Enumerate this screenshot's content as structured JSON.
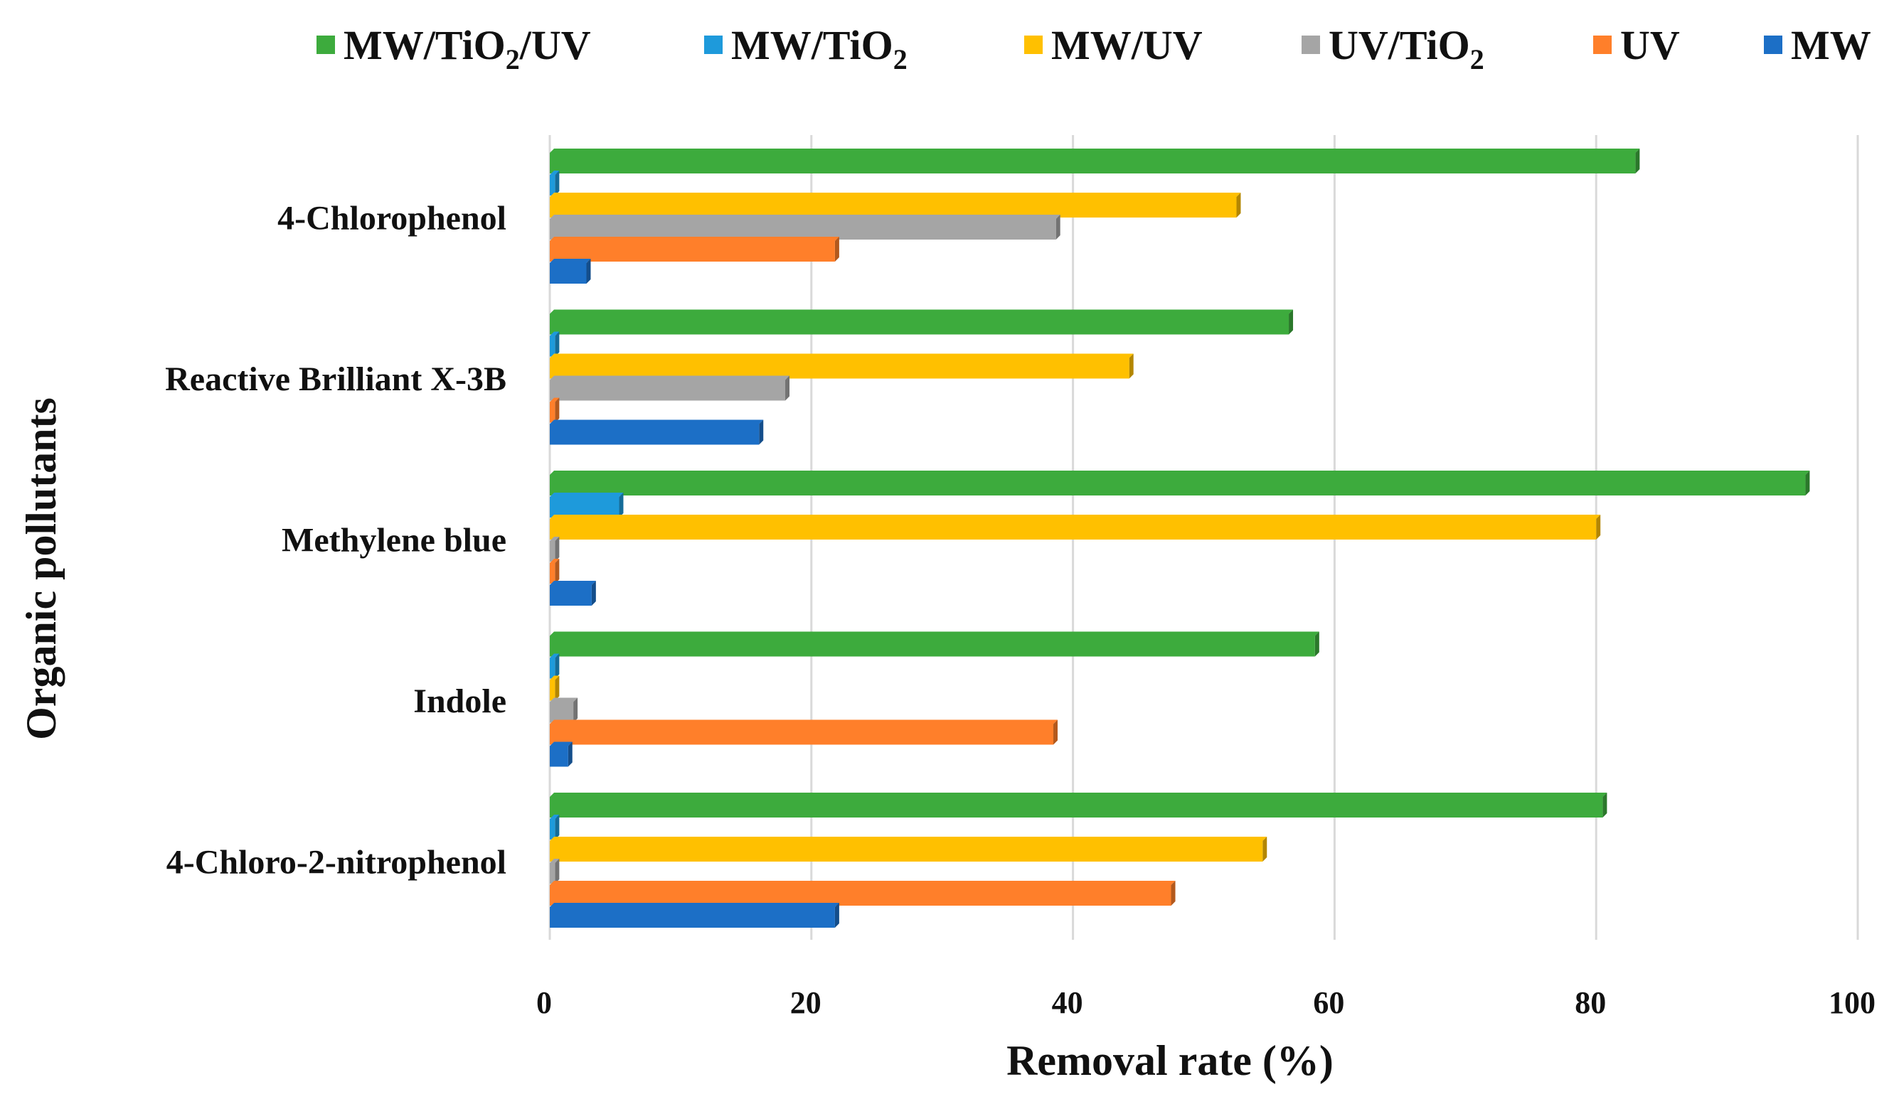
{
  "chart_data": {
    "type": "bar",
    "orientation": "horizontal",
    "title": "",
    "xlabel": "Removal rate (%)",
    "ylabel": "Organic pollutants",
    "xlim": [
      0,
      100
    ],
    "xticks": [
      "0",
      "20",
      "40",
      "60",
      "80",
      "100"
    ],
    "grid": true,
    "legend_position": "top",
    "categories": [
      "4-Chlorophenol",
      "Reactive Brilliant X-3B",
      "Methylene blue",
      "Indole",
      "4-Chloro-2-nitrophenol"
    ],
    "series": [
      {
        "name": "MW/TiO2/UV",
        "legend_main": "MW/TiO",
        "legend_sub": "2",
        "legend_tail": "/UV",
        "color": "#3DAB3D",
        "values": [
          83,
          56.5,
          96,
          58.5,
          80.5
        ]
      },
      {
        "name": "MW/TiO2",
        "legend_main": "MW/TiO",
        "legend_sub": "2",
        "legend_tail": "",
        "color": "#1E9ADB",
        "values": [
          0.4,
          0.4,
          5.3,
          0.4,
          0.4
        ]
      },
      {
        "name": "MW/UV",
        "legend_main": "MW/UV",
        "legend_sub": "",
        "legend_tail": "",
        "color": "#FFC000",
        "values": [
          52.5,
          44.3,
          80,
          0.4,
          54.5
        ]
      },
      {
        "name": "UV/TiO2",
        "legend_main": "UV/TiO",
        "legend_sub": "2",
        "legend_tail": "",
        "color": "#A5A5A5",
        "values": [
          38.7,
          18,
          0.4,
          1.8,
          0.4
        ]
      },
      {
        "name": "UV",
        "legend_main": "UV",
        "legend_sub": "",
        "legend_tail": "",
        "color": "#FF7F2A",
        "values": [
          21.8,
          0.4,
          0.4,
          38.5,
          47.5
        ]
      },
      {
        "name": "MW",
        "legend_main": "MW",
        "legend_sub": "",
        "legend_tail": "",
        "color": "#1C6FC6",
        "values": [
          2.8,
          16,
          3.2,
          1.4,
          21.8
        ]
      }
    ]
  }
}
